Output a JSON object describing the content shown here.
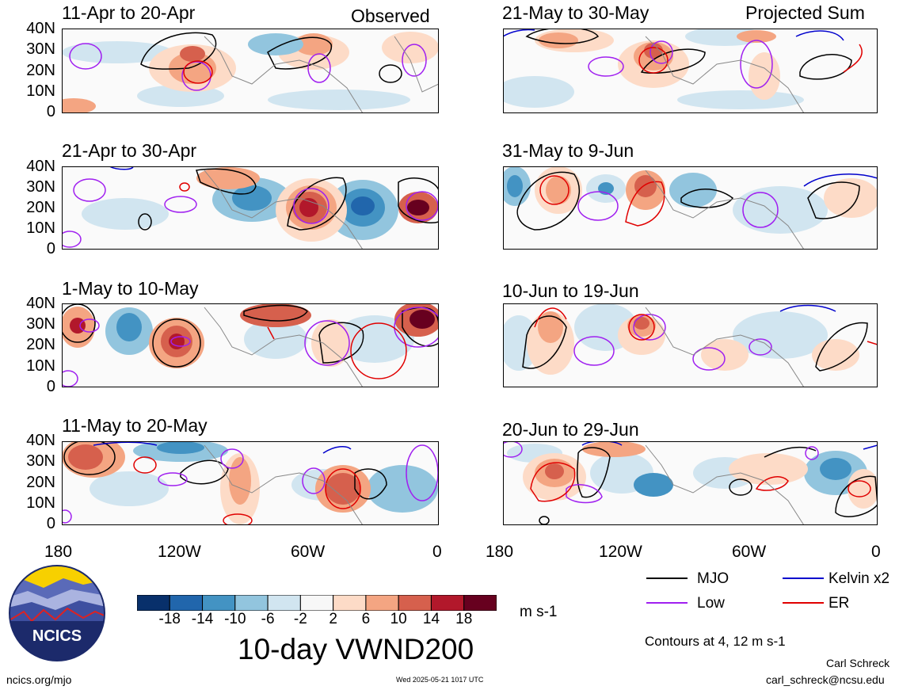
{
  "map": {
    "variable_title": "10-day VWND200",
    "left_column_label": "Observed",
    "right_column_label": "Projected Sum",
    "y_tick_labels": [
      "40N",
      "30N",
      "20N",
      "10N",
      "0"
    ],
    "x_tick_labels": [
      "180",
      "120W",
      "60W",
      "0"
    ],
    "panels": [
      {
        "period": "11-Apr to 20-Apr"
      },
      {
        "period": "21-Apr to 30-Apr"
      },
      {
        "period": "1-May to 10-May"
      },
      {
        "period": "11-May to 20-May"
      },
      {
        "period": "21-May to 30-May"
      },
      {
        "period": "31-May to 9-Jun"
      },
      {
        "period": "10-Jun to 19-Jun"
      },
      {
        "period": "20-Jun to 29-Jun"
      }
    ],
    "colorbar": {
      "ticks": [
        "-18",
        "-14",
        "-10",
        "-6",
        "-2",
        "2",
        "6",
        "10",
        "14",
        "18"
      ],
      "units": "m s-1",
      "colors": [
        "#08306b",
        "#2166ac",
        "#4393c3",
        "#92c5de",
        "#d1e5f0",
        "#f7f7f7",
        "#fddbc7",
        "#f4a582",
        "#d6604d",
        "#b2182b",
        "#67001f"
      ]
    },
    "legend": {
      "items": [
        {
          "label": "MJO",
          "color": "#000000"
        },
        {
          "label": "Kelvin x2",
          "color": "#0000cc"
        },
        {
          "label": "Low",
          "color": "#a020f0"
        },
        {
          "label": "ER",
          "color": "#e00000"
        }
      ],
      "contour_note": "Contours at 4, 12 m s-1"
    },
    "logo_text": "NCICS",
    "footer": {
      "url": "ncics.org/mjo",
      "timestamp": "Wed 2025-05-21 1017 UTC",
      "author": "Carl Schreck",
      "email": "carl_schreck@ncsu.edu"
    }
  }
}
